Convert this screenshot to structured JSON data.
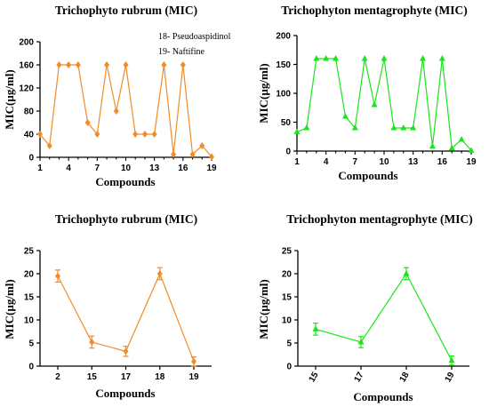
{
  "figure": {
    "colors": {
      "orange": "#f28c28",
      "green": "#19e619",
      "axis": "#000000"
    }
  },
  "chart_data": [
    {
      "type": "line",
      "title": "Trichophyto rubrum (MIC)",
      "xlabel": "Compounds",
      "ylabel": "MIC(µg/ml)",
      "color": "#f28c28",
      "marker": "diamond",
      "xlim": [
        1,
        19
      ],
      "ylim": [
        0,
        200
      ],
      "xticks": [
        1,
        4,
        7,
        10,
        13,
        16,
        19
      ],
      "yticks": [
        0,
        40,
        80,
        120,
        160,
        200
      ],
      "x": [
        1,
        2,
        3,
        4,
        5,
        6,
        7,
        8,
        9,
        10,
        11,
        12,
        13,
        14,
        15,
        16,
        17,
        18,
        19
      ],
      "values": [
        40,
        20,
        160,
        160,
        160,
        60,
        40,
        160,
        80,
        160,
        40,
        40,
        40,
        160,
        5,
        160,
        5,
        20,
        1
      ],
      "annotations": [
        "18- Pseudoaspidinol",
        "19- Naftifine"
      ]
    },
    {
      "type": "line",
      "title": "Trichophyton mentagrophyte (MIC)",
      "xlabel": "Compounds",
      "ylabel": "MIC(µg/ml)",
      "color": "#19e619",
      "marker": "triangle",
      "xlim": [
        1,
        19
      ],
      "ylim": [
        0,
        200
      ],
      "xticks": [
        1,
        4,
        7,
        10,
        13,
        16,
        19
      ],
      "yticks": [
        0,
        50,
        100,
        150,
        200
      ],
      "x": [
        1,
        2,
        3,
        4,
        5,
        6,
        7,
        8,
        9,
        10,
        11,
        12,
        13,
        14,
        15,
        16,
        17,
        18,
        19
      ],
      "values": [
        33,
        40,
        160,
        160,
        160,
        60,
        40,
        160,
        80,
        160,
        40,
        40,
        40,
        160,
        8,
        160,
        5,
        20,
        1
      ]
    },
    {
      "type": "line",
      "title": "Trichophyto rubrum (MIC)",
      "xlabel": "Compounds",
      "ylabel": "MIC(µg/ml)",
      "color": "#f28c28",
      "marker": "diamond",
      "categories": [
        "2",
        "15",
        "17",
        "18",
        "19"
      ],
      "ylim": [
        0,
        25
      ],
      "yticks": [
        0,
        5,
        10,
        15,
        20,
        25
      ],
      "values": [
        19.5,
        5.2,
        3.2,
        20,
        1
      ],
      "errors": [
        1.3,
        1.3,
        1.1,
        1.3,
        1.0
      ]
    },
    {
      "type": "line",
      "title": "Trichophyton mentagrophyte (MIC)",
      "xlabel": "Compounds",
      "ylabel": "MIC(µg/ml)",
      "color": "#19e619",
      "marker": "triangle",
      "categories": [
        "15",
        "17",
        "18",
        "19"
      ],
      "ylim": [
        0,
        25
      ],
      "yticks": [
        0,
        5,
        10,
        15,
        20,
        25
      ],
      "values": [
        8,
        5.2,
        20,
        1.2
      ],
      "errors": [
        1.3,
        1.2,
        1.3,
        1.0
      ]
    }
  ]
}
